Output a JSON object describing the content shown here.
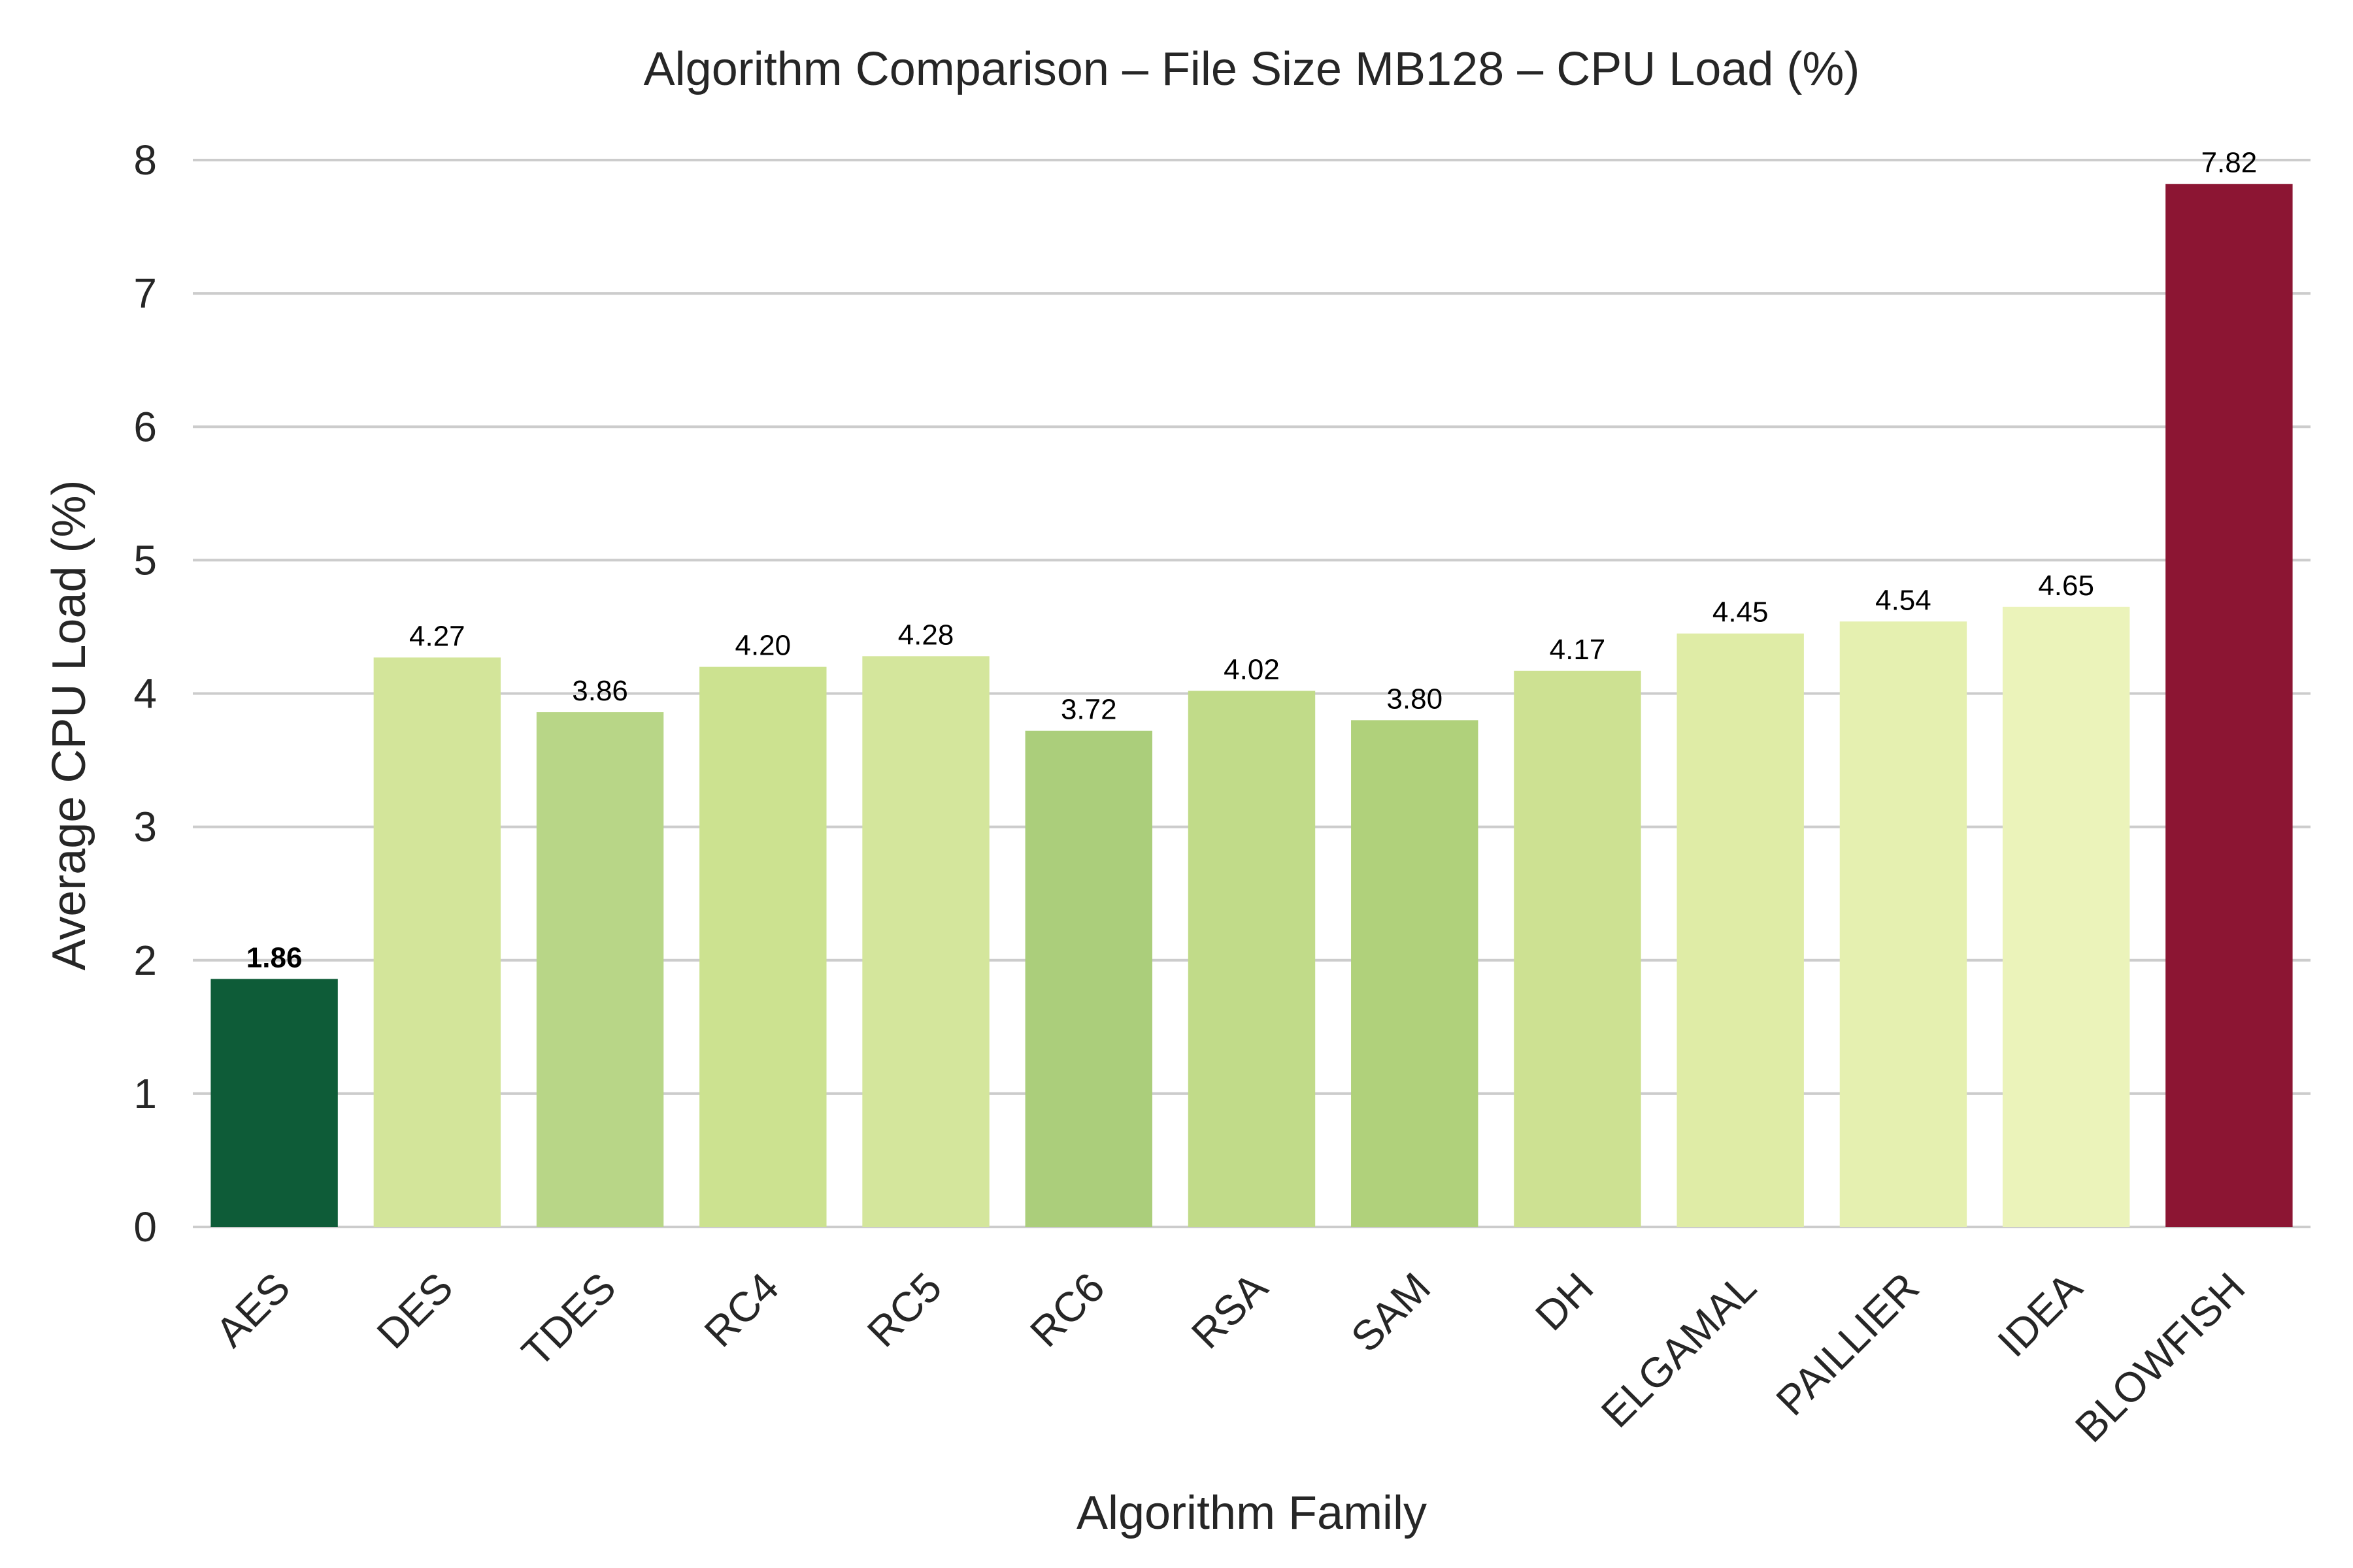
{
  "chart_data": {
    "type": "bar",
    "title": "Algorithm Comparison – File Size MB128 – CPU Load (%)",
    "xlabel": "Algorithm Family",
    "ylabel": "Average CPU Load (%)",
    "ylim": [
      0,
      8
    ],
    "yticks": [
      "0",
      "1",
      "2",
      "3",
      "4",
      "5",
      "6",
      "7",
      "8"
    ],
    "grid": true,
    "categories": [
      "AES",
      "DES",
      "TDES",
      "RC4",
      "RC5",
      "RC6",
      "RSA",
      "SAM",
      "DH",
      "ELGAMAL",
      "PAILLIER",
      "IDEA",
      "BLOWFISH"
    ],
    "values": [
      1.86,
      4.27,
      3.86,
      4.2,
      4.28,
      3.72,
      4.02,
      3.8,
      4.17,
      4.45,
      4.54,
      4.65,
      7.82
    ],
    "value_labels": [
      "1.86",
      "4.27",
      "3.86",
      "4.20",
      "4.28",
      "3.72",
      "4.02",
      "3.80",
      "4.17",
      "4.45",
      "4.54",
      "4.65",
      "7.82"
    ],
    "colors": [
      "#0e5c38",
      "#d3e59a",
      "#b8d687",
      "#cce290",
      "#d4e69c",
      "#abce7b",
      "#c1db89",
      "#b0d17b",
      "#cde192",
      "#dfeca6",
      "#e5f0b0",
      "#ebf3ba",
      "#8c1533"
    ],
    "highlight": {
      "index": 0,
      "label_color": "#006400"
    }
  }
}
